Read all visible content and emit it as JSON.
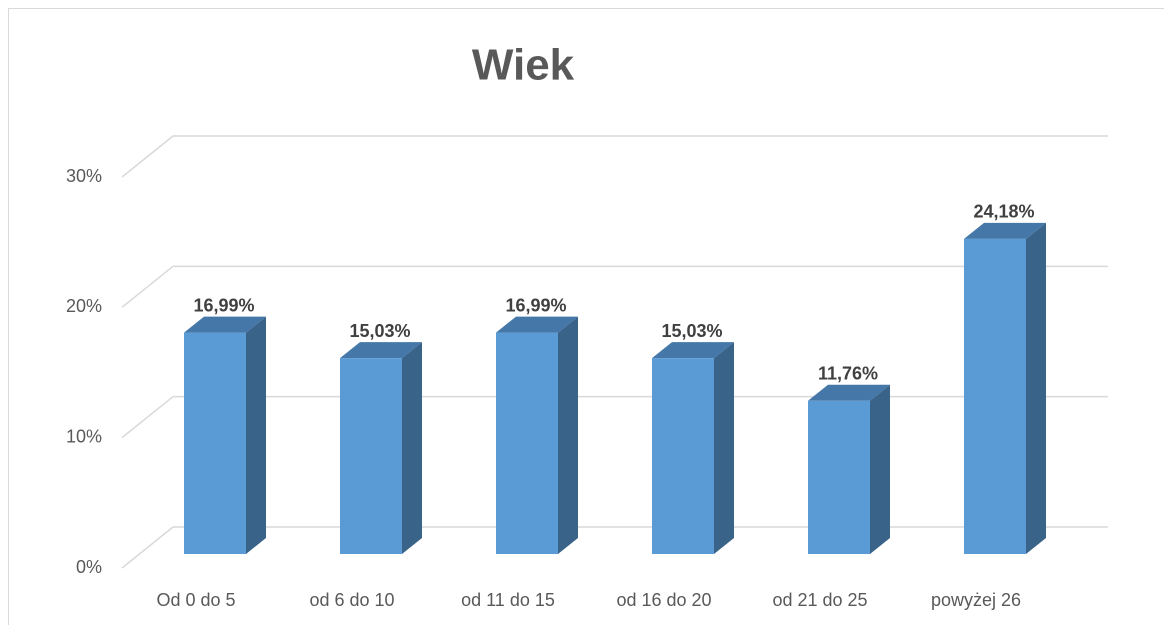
{
  "chart_data": {
    "type": "bar3d",
    "title": "Wiek",
    "categories": [
      "Od 0 do 5",
      "od 6 do 10",
      "od 11 do 15",
      "od 16 do 20",
      "od 21 do 25",
      "powyżej 26"
    ],
    "values": [
      16.99,
      15.03,
      16.99,
      15.03,
      11.76,
      24.18
    ],
    "value_labels": [
      "16,99%",
      "15,03%",
      "16,99%",
      "15,03%",
      "11,76%",
      "24,18%"
    ],
    "color": "#5b9bd5",
    "ylim": [
      0,
      30
    ],
    "yticks": [
      {
        "value": 0,
        "label": "0%"
      },
      {
        "value": 10,
        "label": "10%"
      },
      {
        "value": 20,
        "label": "20%"
      },
      {
        "value": 30,
        "label": "30%"
      }
    ],
    "grid": true
  }
}
